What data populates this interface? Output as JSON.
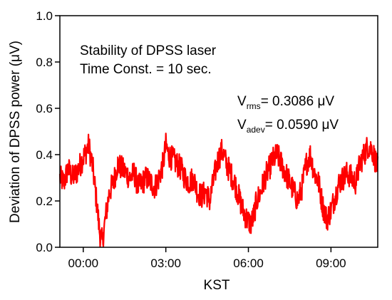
{
  "chart_data": {
    "type": "line",
    "title": "",
    "xlabel": "KST",
    "ylabel": "Deviation of DPSS power (μV)",
    "xlim_hours": [
      -0.85,
      10.7
    ],
    "ylim": [
      0.0,
      1.0
    ],
    "x_ticks": [
      {
        "value": 0,
        "label": "00:00"
      },
      {
        "value": 3,
        "label": "03:00"
      },
      {
        "value": 6,
        "label": "06:00"
      },
      {
        "value": 9,
        "label": "09:00"
      }
    ],
    "y_ticks": [
      {
        "value": 0.0,
        "label": "0.0"
      },
      {
        "value": 0.2,
        "label": "0.2"
      },
      {
        "value": 0.4,
        "label": "0.4"
      },
      {
        "value": 0.6,
        "label": "0.6"
      },
      {
        "value": 0.8,
        "label": "0.8"
      },
      {
        "value": 1.0,
        "label": "1.0"
      }
    ],
    "annotations": {
      "line1": "Stability of DPSS laser",
      "line2": "Time Const. = 10 sec.",
      "vrms_v": "V",
      "vrms_sub": "rms",
      "vrms_value": "= 0.3086 μV",
      "vadev_v": "V",
      "vadev_sub": "adev",
      "vadev_value": "= 0.0590 μV"
    },
    "series": [
      {
        "color": "#ff0000",
        "x": [
          -0.85,
          -0.7,
          -0.55,
          -0.4,
          -0.25,
          -0.1,
          0.05,
          0.2,
          0.35,
          0.5,
          0.6,
          0.7,
          0.8,
          0.95,
          1.1,
          1.25,
          1.4,
          1.55,
          1.7,
          1.85,
          2.0,
          2.15,
          2.3,
          2.45,
          2.6,
          2.75,
          2.9,
          3.0,
          3.1,
          3.25,
          3.4,
          3.55,
          3.7,
          3.85,
          4.0,
          4.15,
          4.3,
          4.45,
          4.6,
          4.75,
          4.9,
          5.05,
          5.2,
          5.35,
          5.5,
          5.65,
          5.8,
          5.95,
          6.1,
          6.2,
          6.3,
          6.45,
          6.6,
          6.75,
          6.9,
          7.05,
          7.2,
          7.35,
          7.5,
          7.65,
          7.8,
          7.95,
          8.1,
          8.25,
          8.4,
          8.55,
          8.7,
          8.85,
          9.0,
          9.15,
          9.3,
          9.45,
          9.6,
          9.75,
          9.9,
          10.05,
          10.2,
          10.35,
          10.5,
          10.6,
          10.7
        ],
        "y": [
          0.3,
          0.28,
          0.34,
          0.3,
          0.32,
          0.36,
          0.4,
          0.44,
          0.34,
          0.18,
          0.06,
          0.02,
          0.12,
          0.24,
          0.28,
          0.36,
          0.34,
          0.32,
          0.3,
          0.32,
          0.26,
          0.28,
          0.3,
          0.28,
          0.26,
          0.3,
          0.36,
          0.44,
          0.4,
          0.38,
          0.36,
          0.34,
          0.3,
          0.28,
          0.3,
          0.24,
          0.22,
          0.24,
          0.2,
          0.3,
          0.38,
          0.42,
          0.36,
          0.32,
          0.28,
          0.22,
          0.16,
          0.12,
          0.1,
          0.14,
          0.2,
          0.24,
          0.3,
          0.34,
          0.38,
          0.4,
          0.36,
          0.32,
          0.28,
          0.24,
          0.2,
          0.26,
          0.36,
          0.4,
          0.32,
          0.28,
          0.18,
          0.12,
          0.16,
          0.22,
          0.28,
          0.3,
          0.32,
          0.3,
          0.28,
          0.36,
          0.4,
          0.44,
          0.42,
          0.38,
          0.34
        ]
      }
    ]
  }
}
